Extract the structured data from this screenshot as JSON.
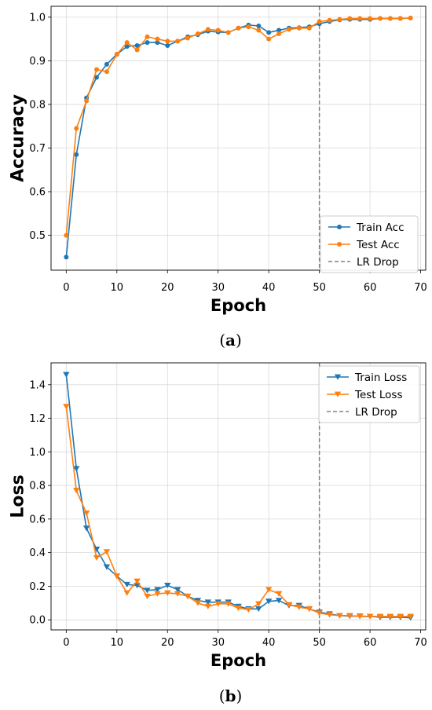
{
  "chart_data": [
    {
      "type": "line",
      "caption_open": "(",
      "caption_letter": "a",
      "caption_close": ")",
      "xlabel": "Epoch",
      "ylabel": "Accuracy",
      "xlim": [
        -3,
        71
      ],
      "ylim": [
        0.42,
        1.025
      ],
      "xticks": [
        0,
        10,
        20,
        30,
        40,
        50,
        60,
        70
      ],
      "yticks": [
        0.5,
        0.6,
        0.7,
        0.8,
        0.9,
        1.0
      ],
      "ytick_labels": [
        "0.5",
        "0.6",
        "0.7",
        "0.8",
        "0.9",
        "1.0"
      ],
      "grid": true,
      "legend_position": "lower-right",
      "vline": {
        "x": 50,
        "name": "LR Drop",
        "color": "#808080"
      },
      "series": [
        {
          "name": "Train Acc",
          "color": "#1f77b4",
          "marker": "circle",
          "x": [
            0,
            2,
            4,
            6,
            8,
            10,
            12,
            14,
            16,
            18,
            20,
            22,
            24,
            26,
            28,
            30,
            32,
            34,
            36,
            38,
            40,
            42,
            44,
            46,
            48,
            50,
            52,
            54,
            56,
            58,
            60,
            62,
            64,
            66,
            68
          ],
          "y": [
            0.45,
            0.685,
            0.815,
            0.862,
            0.892,
            0.915,
            0.933,
            0.935,
            0.942,
            0.942,
            0.935,
            0.945,
            0.955,
            0.96,
            0.968,
            0.966,
            0.965,
            0.975,
            0.982,
            0.98,
            0.965,
            0.97,
            0.975,
            0.976,
            0.978,
            0.985,
            0.99,
            0.994,
            0.995,
            0.995,
            0.995,
            0.997,
            0.997,
            0.997,
            0.998
          ]
        },
        {
          "name": "Test Acc",
          "color": "#ff7f0e",
          "marker": "circle",
          "x": [
            0,
            2,
            4,
            6,
            8,
            10,
            12,
            14,
            16,
            18,
            20,
            22,
            24,
            26,
            28,
            30,
            32,
            34,
            36,
            38,
            40,
            42,
            44,
            46,
            48,
            50,
            52,
            54,
            56,
            58,
            60,
            62,
            64,
            66,
            68
          ],
          "y": [
            0.5,
            0.745,
            0.808,
            0.88,
            0.875,
            0.915,
            0.942,
            0.925,
            0.955,
            0.95,
            0.945,
            0.945,
            0.952,
            0.962,
            0.972,
            0.97,
            0.965,
            0.975,
            0.978,
            0.97,
            0.95,
            0.962,
            0.972,
            0.975,
            0.975,
            0.99,
            0.993,
            0.995,
            0.997,
            0.997,
            0.997,
            0.997,
            0.997,
            0.997,
            0.998
          ]
        }
      ]
    },
    {
      "type": "line",
      "caption_open": "(",
      "caption_letter": "b",
      "caption_close": ")",
      "xlabel": "Epoch",
      "ylabel": "Loss",
      "xlim": [
        -3,
        71
      ],
      "ylim": [
        -0.06,
        1.53
      ],
      "xticks": [
        0,
        10,
        20,
        30,
        40,
        50,
        60,
        70
      ],
      "yticks": [
        0.0,
        0.2,
        0.4,
        0.6,
        0.8,
        1.0,
        1.2,
        1.4
      ],
      "ytick_labels": [
        "0.0",
        "0.2",
        "0.4",
        "0.6",
        "0.8",
        "1.0",
        "1.2",
        "1.4"
      ],
      "grid": true,
      "legend_position": "upper-right",
      "vline": {
        "x": 50,
        "name": "LR Drop",
        "color": "#808080"
      },
      "series": [
        {
          "name": "Train Loss",
          "color": "#1f77b4",
          "marker": "triangle-down",
          "x": [
            0,
            2,
            4,
            6,
            8,
            10,
            12,
            14,
            16,
            18,
            20,
            22,
            24,
            26,
            28,
            30,
            32,
            34,
            36,
            38,
            40,
            42,
            44,
            46,
            48,
            50,
            52,
            54,
            56,
            58,
            60,
            62,
            64,
            66,
            68
          ],
          "y": [
            1.46,
            0.9,
            0.545,
            0.42,
            0.315,
            0.26,
            0.21,
            0.205,
            0.175,
            0.18,
            0.205,
            0.18,
            0.14,
            0.115,
            0.105,
            0.105,
            0.105,
            0.08,
            0.065,
            0.065,
            0.11,
            0.115,
            0.085,
            0.085,
            0.065,
            0.045,
            0.035,
            0.025,
            0.022,
            0.022,
            0.02,
            0.015,
            0.015,
            0.015,
            0.012
          ]
        },
        {
          "name": "Test Loss",
          "color": "#ff7f0e",
          "marker": "triangle-down",
          "x": [
            0,
            2,
            4,
            6,
            8,
            10,
            12,
            14,
            16,
            18,
            20,
            22,
            24,
            26,
            28,
            30,
            32,
            34,
            36,
            38,
            40,
            42,
            44,
            46,
            48,
            50,
            52,
            54,
            56,
            58,
            60,
            62,
            64,
            66,
            68
          ],
          "y": [
            1.27,
            0.77,
            0.635,
            0.37,
            0.405,
            0.26,
            0.16,
            0.23,
            0.14,
            0.155,
            0.16,
            0.155,
            0.14,
            0.1,
            0.08,
            0.095,
            0.095,
            0.07,
            0.06,
            0.095,
            0.18,
            0.155,
            0.09,
            0.075,
            0.065,
            0.04,
            0.03,
            0.025,
            0.025,
            0.02,
            0.02,
            0.02,
            0.02,
            0.02,
            0.02
          ]
        }
      ]
    }
  ]
}
